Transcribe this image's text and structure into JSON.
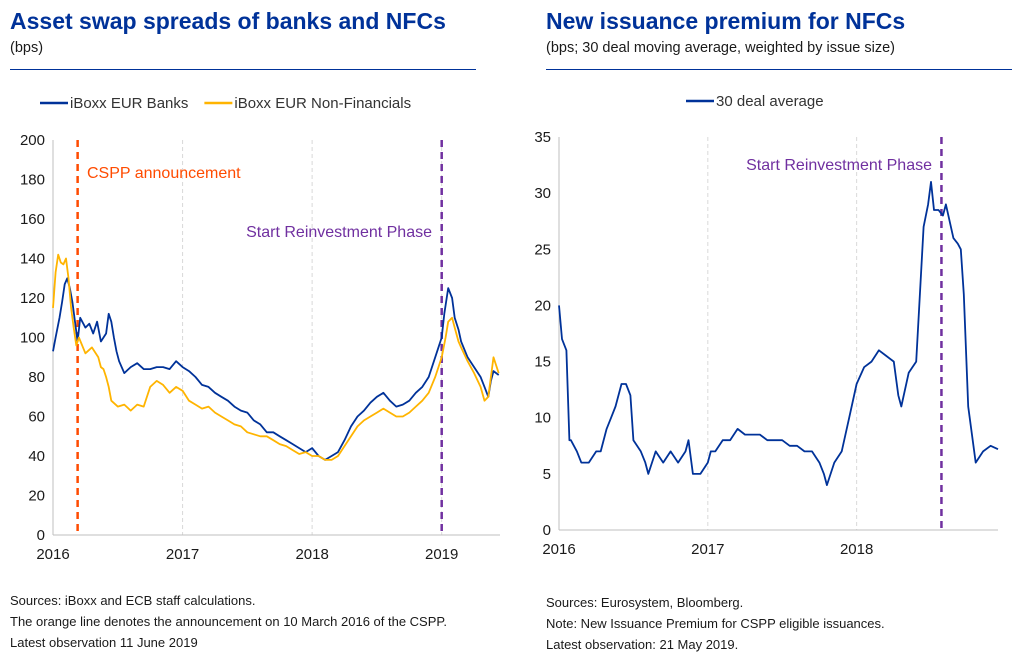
{
  "left": {
    "title": "Asset swap spreads of banks and NFCs",
    "subtitle": "(bps)",
    "footnotes": [
      "Sources: iBoxx and ECB staff calculations.",
      "The orange line denotes the announcement on 10 March 2016 of the CSPP.",
      "Latest observation 11 June 2019"
    ]
  },
  "right": {
    "title": "New issuance premium for NFCs",
    "subtitle": "(bps; 30 deal moving average, weighted by issue size)",
    "footnotes": [
      "Sources: Eurosystem, Bloomberg.",
      "Note: New Issuance Premium for CSPP eligible issuances.",
      "Latest observation: 21 May 2019."
    ]
  },
  "chart_data": [
    {
      "type": "line",
      "title": "Asset swap spreads of banks and NFCs",
      "subtitle": "(bps)",
      "ylim": [
        0,
        200
      ],
      "yticks": [
        0,
        20,
        40,
        60,
        80,
        100,
        120,
        140,
        160,
        180,
        200
      ],
      "xlim": [
        2016.0,
        2019.45
      ],
      "xticks": [
        {
          "value": 2016,
          "label": "2016"
        },
        {
          "value": 2017,
          "label": "2017"
        },
        {
          "value": 2018,
          "label": "2018"
        },
        {
          "value": 2019,
          "label": "2019"
        }
      ],
      "grid": "vertical dashed at year ticks",
      "legend_position": "top",
      "colors": {
        "banks": "#003299",
        "nfc": "#ffb400",
        "cspp": "#ff4b00",
        "reinvest": "#7030a0",
        "grid": "#d9d9d9"
      },
      "series": [
        {
          "name": "iBoxx EUR Banks",
          "color": "#003299",
          "x": [
            2016.0,
            2016.02,
            2016.05,
            2016.07,
            2016.09,
            2016.11,
            2016.13,
            2016.15,
            2016.17,
            2016.19,
            2016.21,
            2016.25,
            2016.28,
            2016.31,
            2016.34,
            2016.37,
            2016.39,
            2016.41,
            2016.43,
            2016.45,
            2016.47,
            2016.49,
            2016.51,
            2016.55,
            2016.6,
            2016.65,
            2016.7,
            2016.75,
            2016.8,
            2016.85,
            2016.9,
            2016.95,
            2017.0,
            2017.05,
            2017.1,
            2017.15,
            2017.2,
            2017.25,
            2017.3,
            2017.35,
            2017.4,
            2017.45,
            2017.5,
            2017.55,
            2017.6,
            2017.65,
            2017.7,
            2017.75,
            2017.8,
            2017.85,
            2017.9,
            2017.95,
            2018.0,
            2018.05,
            2018.1,
            2018.15,
            2018.2,
            2018.25,
            2018.3,
            2018.35,
            2018.4,
            2018.45,
            2018.5,
            2018.55,
            2018.6,
            2018.65,
            2018.7,
            2018.75,
            2018.8,
            2018.85,
            2018.9,
            2018.95,
            2019.0,
            2019.02,
            2019.05,
            2019.08,
            2019.1,
            2019.13,
            2019.15,
            2019.2,
            2019.25,
            2019.3,
            2019.33,
            2019.36,
            2019.38,
            2019.4,
            2019.44
          ],
          "values": [
            93,
            100,
            110,
            118,
            127,
            130,
            125,
            118,
            108,
            98,
            110,
            105,
            107,
            102,
            108,
            98,
            100,
            102,
            112,
            108,
            100,
            93,
            88,
            82,
            85,
            87,
            84,
            84,
            85,
            85,
            84,
            88,
            85,
            83,
            80,
            76,
            75,
            72,
            70,
            68,
            65,
            63,
            62,
            58,
            56,
            52,
            52,
            50,
            48,
            46,
            44,
            42,
            44,
            40,
            38,
            40,
            42,
            48,
            55,
            60,
            63,
            67,
            70,
            72,
            68,
            65,
            66,
            68,
            72,
            75,
            80,
            90,
            100,
            112,
            125,
            120,
            110,
            104,
            98,
            90,
            85,
            80,
            75,
            70,
            78,
            83,
            81
          ]
        },
        {
          "name": "iBoxx EUR Non-Financials",
          "color": "#ffb400",
          "x": [
            2016.0,
            2016.02,
            2016.04,
            2016.06,
            2016.08,
            2016.1,
            2016.12,
            2016.14,
            2016.16,
            2016.18,
            2016.2,
            2016.25,
            2016.3,
            2016.35,
            2016.37,
            2016.39,
            2016.41,
            2016.43,
            2016.45,
            2016.5,
            2016.55,
            2016.6,
            2016.65,
            2016.7,
            2016.75,
            2016.8,
            2016.85,
            2016.9,
            2016.95,
            2017.0,
            2017.05,
            2017.1,
            2017.15,
            2017.2,
            2017.25,
            2017.3,
            2017.35,
            2017.4,
            2017.45,
            2017.5,
            2017.55,
            2017.6,
            2017.65,
            2017.7,
            2017.75,
            2017.8,
            2017.85,
            2017.9,
            2017.95,
            2018.0,
            2018.05,
            2018.1,
            2018.15,
            2018.2,
            2018.25,
            2018.3,
            2018.35,
            2018.4,
            2018.45,
            2018.5,
            2018.55,
            2018.6,
            2018.65,
            2018.7,
            2018.75,
            2018.8,
            2018.85,
            2018.9,
            2018.95,
            2019.0,
            2019.03,
            2019.05,
            2019.08,
            2019.1,
            2019.13,
            2019.15,
            2019.2,
            2019.25,
            2019.3,
            2019.33,
            2019.36,
            2019.38,
            2019.4,
            2019.44
          ],
          "values": [
            115,
            133,
            142,
            138,
            137,
            140,
            130,
            115,
            105,
            96,
            100,
            92,
            95,
            90,
            85,
            84,
            80,
            75,
            68,
            65,
            66,
            63,
            66,
            65,
            75,
            78,
            76,
            72,
            75,
            73,
            68,
            66,
            64,
            65,
            62,
            60,
            58,
            56,
            55,
            52,
            51,
            50,
            50,
            48,
            46,
            45,
            43,
            41,
            42,
            40,
            40,
            38,
            38,
            40,
            45,
            50,
            55,
            58,
            60,
            62,
            64,
            62,
            60,
            60,
            62,
            65,
            68,
            72,
            80,
            90,
            100,
            108,
            110,
            105,
            98,
            95,
            88,
            82,
            75,
            68,
            70,
            80,
            90,
            82
          ]
        }
      ],
      "annotations": [
        {
          "text": "CSPP announcement",
          "x": 2016.19,
          "color": "#ff4b00",
          "style": "dashed vertical line"
        },
        {
          "text": "Start Reinvestment Phase",
          "x": 2019.0,
          "color": "#7030a0",
          "style": "dashed vertical line"
        }
      ]
    },
    {
      "type": "line",
      "title": "New issuance premium for NFCs",
      "subtitle": "(bps; 30 deal moving average, weighted by issue size)",
      "ylim": [
        0,
        35
      ],
      "yticks": [
        0,
        5,
        10,
        15,
        20,
        25,
        30,
        35
      ],
      "xlim": [
        2016.0,
        2018.95
      ],
      "xticks": [
        {
          "value": 2016,
          "label": "2016"
        },
        {
          "value": 2017,
          "label": "2017"
        },
        {
          "value": 2018,
          "label": "2018"
        }
      ],
      "grid": "vertical dashed at year ticks",
      "legend_position": "top",
      "colors": {
        "series": "#003299",
        "reinvest": "#7030a0",
        "grid": "#d9d9d9"
      },
      "series": [
        {
          "name": "30 deal average",
          "color": "#003299",
          "x": [
            2016.0,
            2016.02,
            2016.05,
            2016.07,
            2016.08,
            2016.12,
            2016.15,
            2016.2,
            2016.25,
            2016.28,
            2016.32,
            2016.35,
            2016.38,
            2016.42,
            2016.45,
            2016.48,
            2016.5,
            2016.55,
            2016.58,
            2016.6,
            2016.65,
            2016.7,
            2016.75,
            2016.8,
            2016.85,
            2016.87,
            2016.9,
            2016.95,
            2017.0,
            2017.02,
            2017.05,
            2017.1,
            2017.15,
            2017.2,
            2017.25,
            2017.3,
            2017.35,
            2017.4,
            2017.45,
            2017.5,
            2017.55,
            2017.6,
            2017.65,
            2017.7,
            2017.75,
            2017.78,
            2017.8,
            2017.85,
            2017.9,
            2017.95,
            2018.0,
            2018.05,
            2018.1,
            2018.15,
            2018.2,
            2018.25,
            2018.28,
            2018.3,
            2018.35,
            2018.4,
            2018.45,
            2018.48,
            2018.5,
            2018.52,
            2018.55,
            2018.58,
            2018.6,
            2018.65,
            2018.68,
            2018.7,
            2018.72,
            2018.75,
            2018.8,
            2018.85,
            2018.9,
            2018.95
          ],
          "values": [
            20,
            17,
            16,
            8,
            8,
            7,
            6,
            6,
            7,
            7,
            9,
            10,
            11,
            13,
            13,
            12,
            8,
            7,
            6,
            5,
            7,
            6,
            7,
            6,
            7,
            8,
            5,
            5,
            6,
            7,
            7,
            8,
            8,
            9,
            8.5,
            8.5,
            8.5,
            8,
            8,
            8,
            7.5,
            7.5,
            7,
            7,
            6,
            5,
            4,
            6,
            7,
            10,
            13,
            14.5,
            15,
            16,
            15.5,
            15,
            12,
            11,
            14,
            15,
            27,
            29,
            31,
            28.5,
            28.5,
            28,
            29,
            26,
            25.5,
            25,
            21,
            11,
            6,
            7,
            7.5,
            7.2
          ]
        }
      ],
      "annotations": [
        {
          "text": "Start Reinvestment Phase",
          "x": 2018.57,
          "color": "#7030a0",
          "style": "dashed vertical line"
        }
      ]
    }
  ]
}
